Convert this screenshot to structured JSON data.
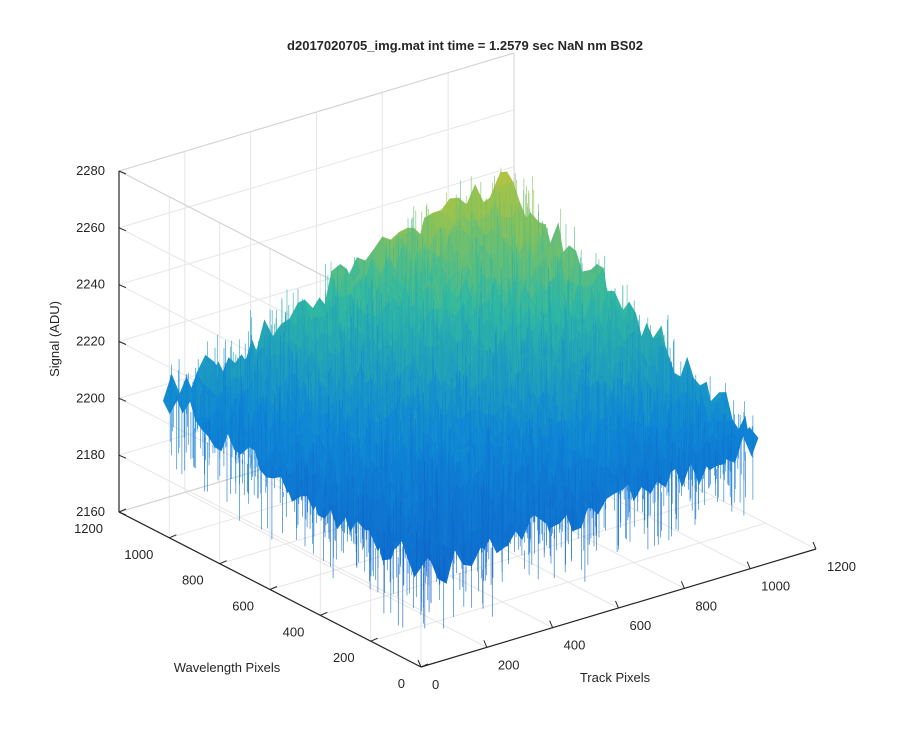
{
  "chart_data": {
    "type": "surface3d",
    "title": "d2017020705_img.mat int time = 1.2579 sec  NaN nm BS02",
    "xlabel": "Track Pixels",
    "ylabel": "Wavelength Pixels",
    "zlabel": "Signal (ADU)",
    "xlim": [
      0,
      1200
    ],
    "ylim": [
      0,
      1200
    ],
    "zlim": [
      2160,
      2280
    ],
    "xticks": [
      "0",
      "200",
      "400",
      "600",
      "800",
      "1000",
      "1200"
    ],
    "yticks": [
      "0",
      "200",
      "400",
      "600",
      "800",
      "1000",
      "1200"
    ],
    "zticks": [
      "2160",
      "2180",
      "2200",
      "2220",
      "2240",
      "2260",
      "2280"
    ],
    "grid": true,
    "colormap": "parula",
    "colors": {
      "low": "#0f86d6",
      "mid": "#34b99f",
      "high": "#e3c02d"
    },
    "surface_extent": {
      "x": [
        0,
        1024
      ],
      "y": [
        0,
        1024
      ]
    },
    "surface_level": {
      "corner_x0_y0": 2193,
      "corner_xmax_y0": 2203,
      "corner_x0_ymax": 2208,
      "corner_xmax_ymax": 2250,
      "peak": 2270,
      "trough": 2172
    }
  }
}
